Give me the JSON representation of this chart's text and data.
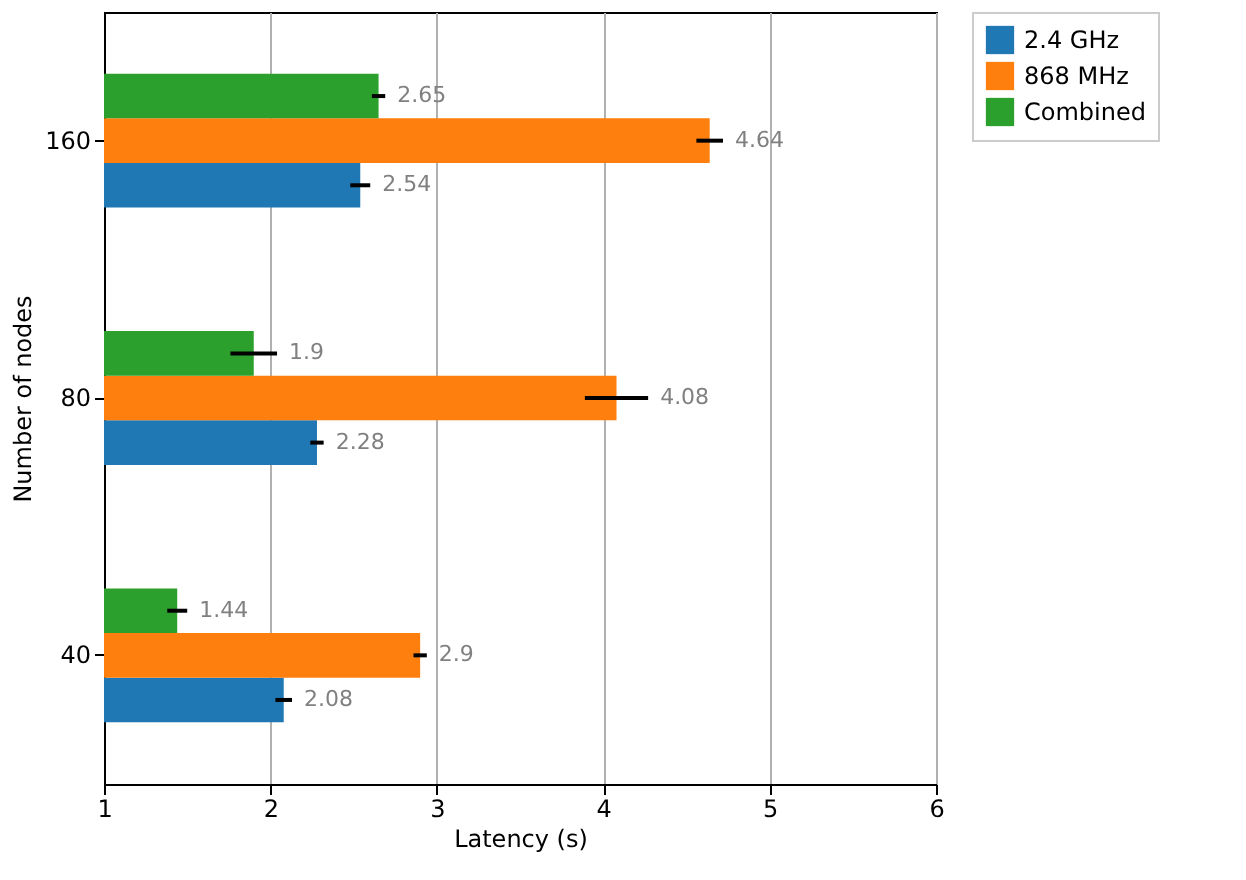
{
  "chart_data": {
    "type": "bar",
    "orientation": "horizontal",
    "xlabel": "Latency (s)",
    "ylabel": "Number of nodes",
    "categories": [
      "160",
      "80",
      "40"
    ],
    "series": [
      {
        "name": "2.4 GHz",
        "color": "#1f77b4",
        "values": [
          2.54,
          2.28,
          2.08
        ],
        "errors": [
          0.06,
          0.04,
          0.05
        ]
      },
      {
        "name": "868 MHz",
        "color": "#ff7f0e",
        "values": [
          4.64,
          4.08,
          2.9
        ],
        "errors": [
          0.08,
          0.19,
          0.04
        ]
      },
      {
        "name": "Combined",
        "color": "#2ca02c",
        "values": [
          2.65,
          1.9,
          1.44
        ],
        "errors": [
          0.04,
          0.14,
          0.06
        ]
      }
    ],
    "xlim": [
      1,
      6
    ],
    "xticks": [
      1,
      2,
      3,
      4,
      5,
      6
    ],
    "grid": "x",
    "legend": "right",
    "data_labels": true
  }
}
